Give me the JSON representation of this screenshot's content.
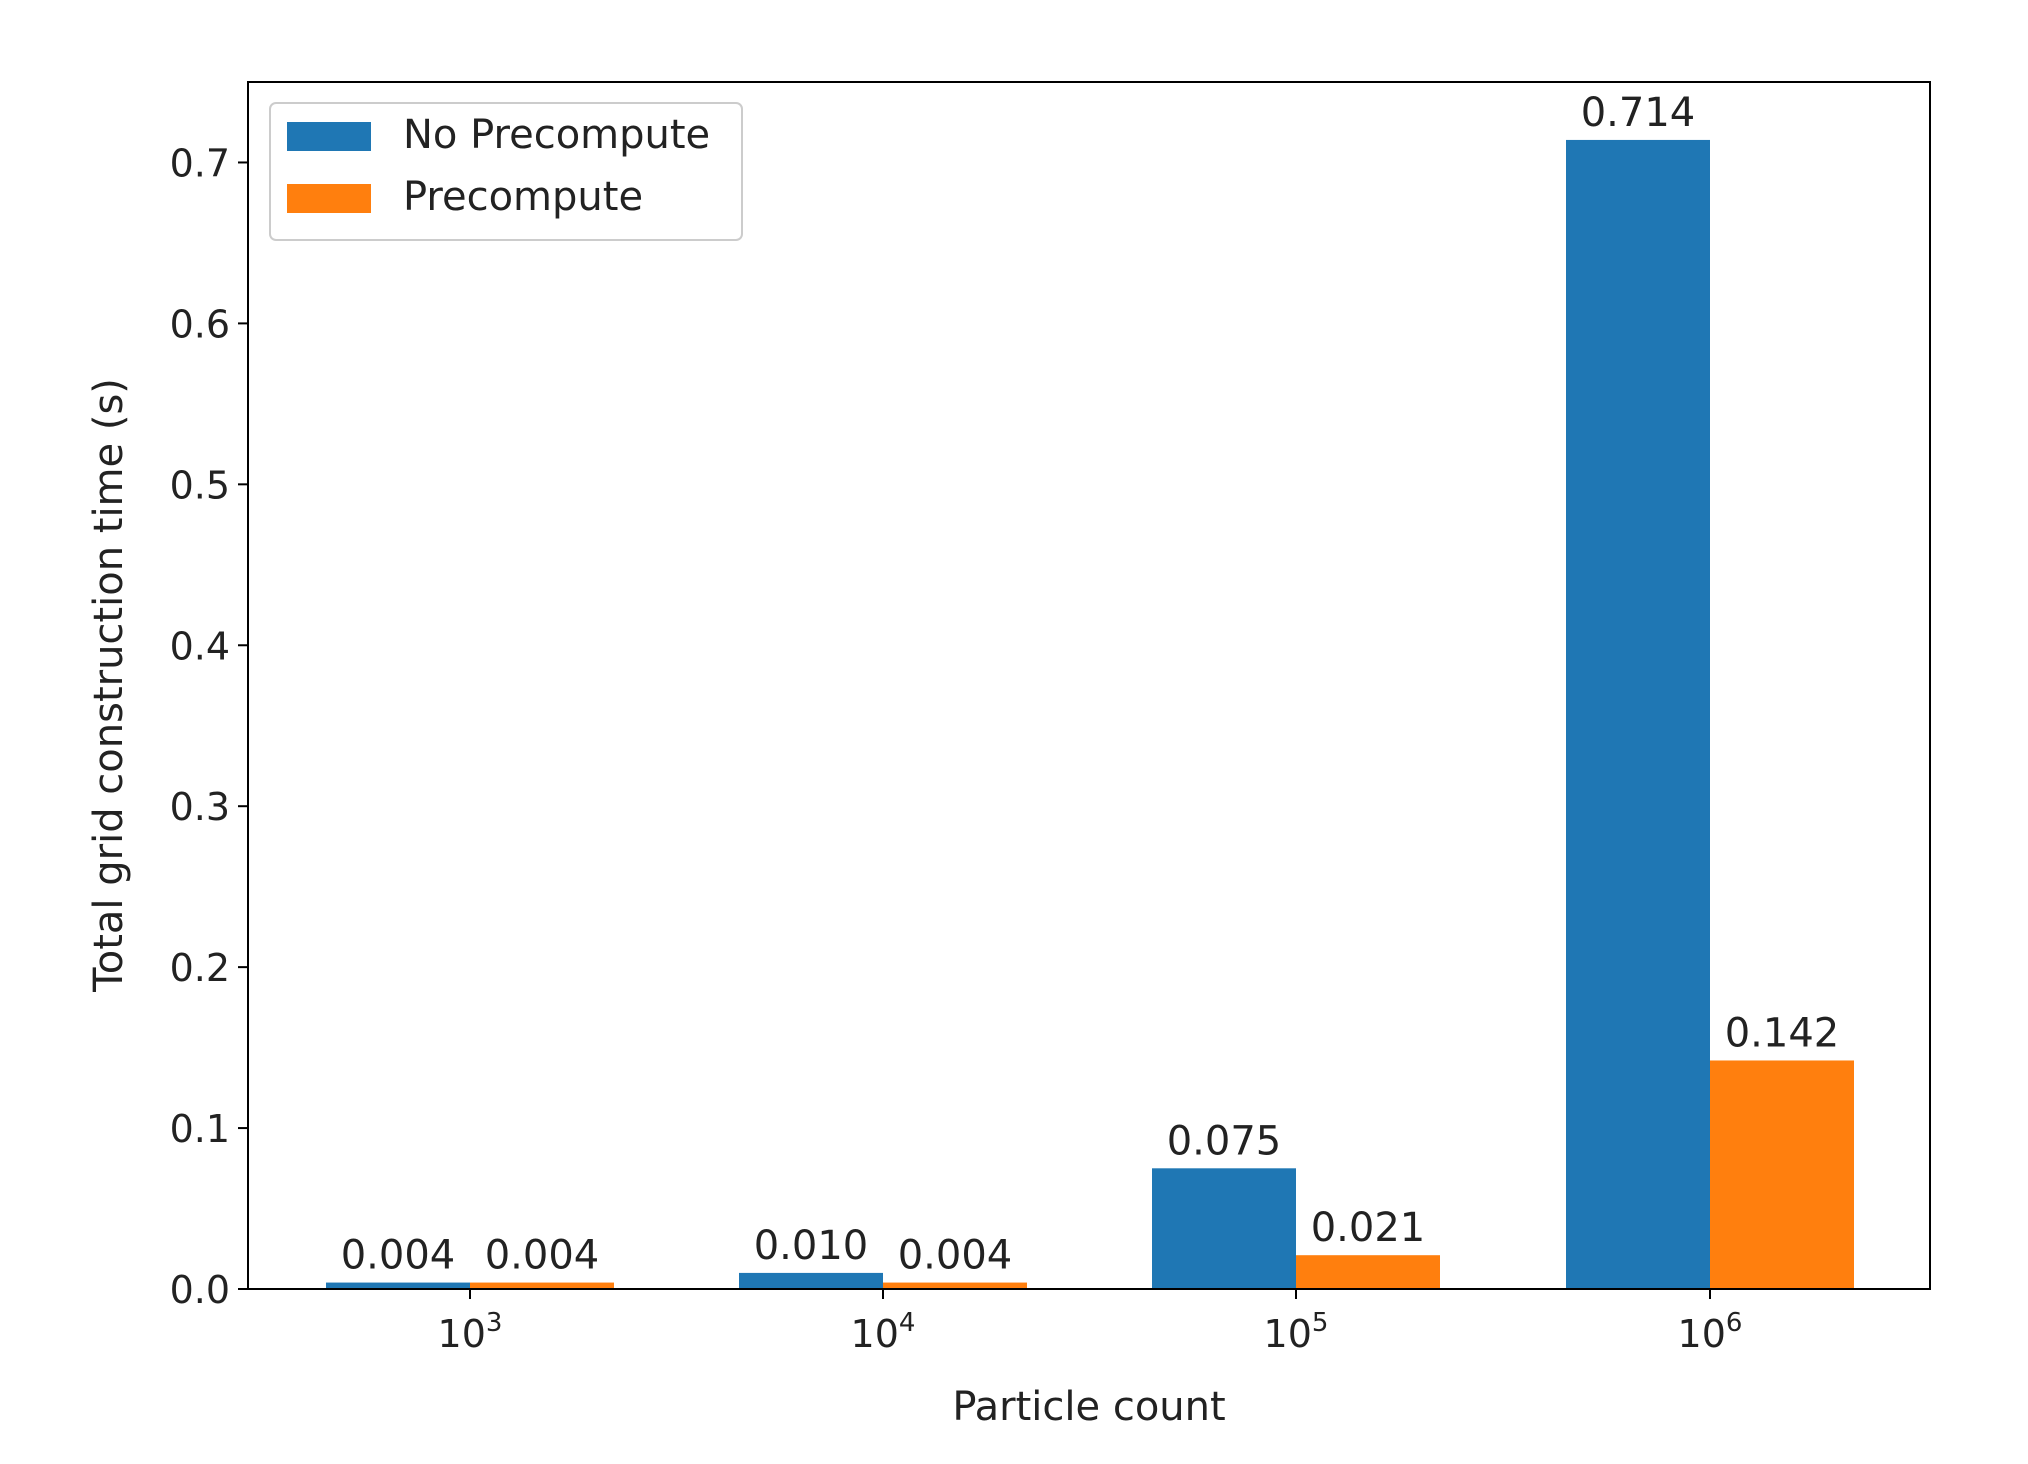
{
  "chart_data": {
    "type": "bar",
    "title": "",
    "xlabel": "Particle count",
    "ylabel": "Total grid construction time (s)",
    "categories": [
      {
        "base": "10",
        "exp": "3"
      },
      {
        "base": "10",
        "exp": "4"
      },
      {
        "base": "10",
        "exp": "5"
      },
      {
        "base": "10",
        "exp": "6"
      }
    ],
    "series": [
      {
        "name": "No Precompute",
        "color": "#1f77b4",
        "values": [
          0.004,
          0.01,
          0.075,
          0.714
        ],
        "labels": [
          "0.004",
          "0.010",
          "0.075",
          "0.714"
        ]
      },
      {
        "name": "Precompute",
        "color": "#ff7f0e",
        "values": [
          0.004,
          0.004,
          0.021,
          0.142
        ],
        "labels": [
          "0.004",
          "0.004",
          "0.021",
          "0.142"
        ]
      }
    ],
    "ylim": [
      0,
      0.75
    ],
    "yticks": [
      "0.0",
      "0.1",
      "0.2",
      "0.3",
      "0.4",
      "0.5",
      "0.6",
      "0.7"
    ],
    "grid": false,
    "legend_position": "upper-left"
  }
}
